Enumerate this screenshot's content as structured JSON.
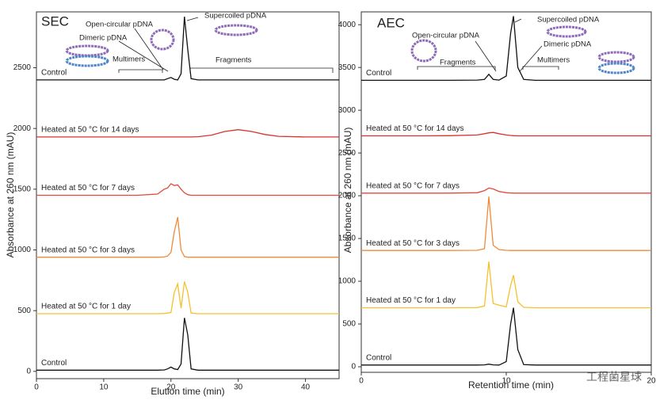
{
  "chart_data": [
    {
      "type": "line",
      "title": "SEC",
      "x_label": "Elution time (min)",
      "y_label": "Absorbance at 260 nm (mAU)",
      "xlim": [
        0,
        45
      ],
      "ylim": [
        -60,
        2960
      ],
      "xticks": [
        0,
        10,
        20,
        30,
        40
      ],
      "yticks": [
        0,
        500,
        1000,
        1500,
        2000,
        2500
      ],
      "annotations": [
        "Open-circular pDNA",
        "Dimeric pDNA",
        "Multimers",
        "Supercoiled pDNA",
        "Fragments"
      ],
      "x": [
        0,
        5,
        10,
        15,
        18,
        19,
        19.5,
        20,
        20.5,
        21,
        21.5,
        22,
        22.5,
        23,
        24,
        26,
        28,
        30,
        32,
        34,
        36,
        40,
        45
      ],
      "series": [
        {
          "name": "Control",
          "color": "#111111",
          "values": [
            2400,
            2400,
            2400,
            2400,
            2400,
            2400,
            2410,
            2420,
            2405,
            2400,
            2450,
            2920,
            2650,
            2410,
            2400,
            2400,
            2400,
            2400,
            2400,
            2400,
            2400,
            2400,
            2400
          ]
        },
        {
          "name": "Heated at 50 °C for 14 days",
          "color": "#d9312d",
          "values": [
            1930,
            1930,
            1930,
            1930,
            1930,
            1930,
            1930,
            1930,
            1930,
            1930,
            1930,
            1930,
            1930,
            1930,
            1932,
            1945,
            1975,
            1990,
            1975,
            1950,
            1935,
            1930,
            1930
          ]
        },
        {
          "name": "Heated at 50 °C for 7 days",
          "color": "#e4473b",
          "values": [
            1450,
            1450,
            1450,
            1450,
            1460,
            1500,
            1510,
            1545,
            1530,
            1535,
            1500,
            1470,
            1455,
            1450,
            1450,
            1450,
            1450,
            1450,
            1450,
            1450,
            1450,
            1450,
            1450
          ]
        },
        {
          "name": "Heated at 50 °C for 3 days",
          "color": "#ef8a3a",
          "values": [
            940,
            940,
            940,
            940,
            940,
            942,
            950,
            980,
            1150,
            1270,
            1000,
            945,
            940,
            940,
            940,
            940,
            940,
            940,
            940,
            940,
            940,
            940,
            940
          ]
        },
        {
          "name": "Heated at 50 °C for 1 day",
          "color": "#f4c12e",
          "values": [
            475,
            475,
            475,
            475,
            475,
            477,
            480,
            485,
            650,
            720,
            520,
            740,
            650,
            480,
            475,
            475,
            475,
            475,
            475,
            475,
            475,
            475,
            475
          ]
        },
        {
          "name": "Control",
          "color": "#111111",
          "values": [
            10,
            10,
            10,
            10,
            10,
            12,
            20,
            35,
            20,
            15,
            60,
            440,
            300,
            20,
            10,
            10,
            10,
            10,
            10,
            10,
            10,
            10,
            10
          ]
        }
      ]
    },
    {
      "type": "line",
      "title": "AEC",
      "x_label": "Retention time (min)",
      "y_label": "Absorbance at 260 nm (mAU)",
      "xlim": [
        0,
        20
      ],
      "ylim": [
        -65,
        4150
      ],
      "xticks": [
        0,
        10,
        20
      ],
      "yticks": [
        0,
        500,
        1000,
        1500,
        2000,
        2500,
        3000,
        3500,
        4000
      ],
      "annotations": [
        "Open-circular pDNA",
        "Fragments",
        "Supercoiled pDNA",
        "Dimeric pDNA",
        "Multimers"
      ],
      "watermark": "工程菌星球",
      "x": [
        0,
        2,
        4,
        6,
        8,
        8.5,
        8.8,
        9.1,
        9.5,
        10,
        10.3,
        10.5,
        10.8,
        11.2,
        12,
        14,
        16,
        18,
        20
      ],
      "series": [
        {
          "name": "Control",
          "color": "#111111",
          "values": [
            3350,
            3350,
            3350,
            3350,
            3352,
            3360,
            3420,
            3360,
            3352,
            3400,
            3900,
            4100,
            3500,
            3360,
            3350,
            3350,
            3350,
            3350,
            3350
          ]
        },
        {
          "name": "Heated at 50 °C for 14 days",
          "color": "#d9312d",
          "values": [
            2700,
            2700,
            2700,
            2702,
            2710,
            2725,
            2735,
            2740,
            2725,
            2710,
            2705,
            2702,
            2700,
            2700,
            2700,
            2700,
            2700,
            2700,
            2700
          ]
        },
        {
          "name": "Heated at 50 °C for 7 days",
          "color": "#e4473b",
          "values": [
            2030,
            2030,
            2030,
            2030,
            2035,
            2060,
            2090,
            2080,
            2050,
            2035,
            2032,
            2030,
            2030,
            2030,
            2030,
            2030,
            2030,
            2030,
            2030
          ]
        },
        {
          "name": "Heated at 50 °C for 3 days",
          "color": "#ef8a3a",
          "values": [
            1360,
            1360,
            1360,
            1360,
            1362,
            1380,
            1990,
            1420,
            1370,
            1362,
            1360,
            1360,
            1360,
            1360,
            1360,
            1360,
            1360,
            1360,
            1360
          ]
        },
        {
          "name": "Heated at 50 °C for 1 day",
          "color": "#f4c12e",
          "values": [
            690,
            690,
            690,
            690,
            692,
            710,
            1230,
            740,
            720,
            700,
            950,
            1070,
            760,
            695,
            690,
            690,
            690,
            690,
            690
          ]
        },
        {
          "name": "Control",
          "color": "#111111",
          "values": [
            20,
            20,
            20,
            20,
            20,
            22,
            30,
            22,
            20,
            60,
            500,
            690,
            200,
            25,
            20,
            20,
            20,
            20,
            20
          ]
        }
      ]
    }
  ]
}
